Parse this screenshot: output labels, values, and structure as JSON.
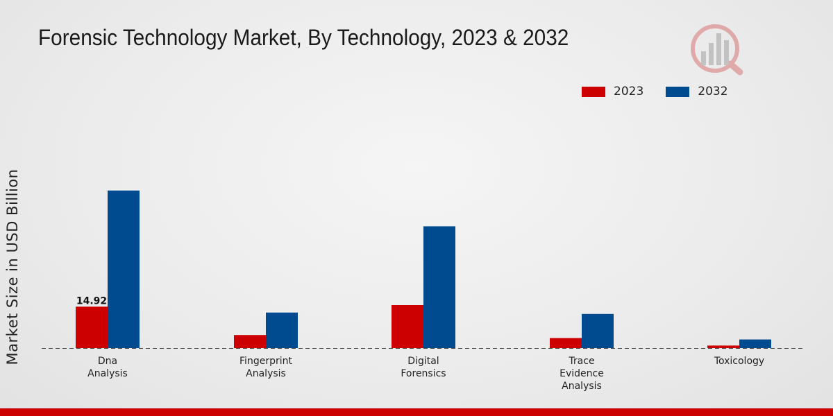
{
  "title": "Forensic Technology Market, By Technology, 2023 & 2032",
  "colors": {
    "series_2023": "#cc0000",
    "series_2032": "#004a8f",
    "footer": "#cc0000"
  },
  "legend": {
    "items": [
      {
        "label": "2023",
        "color": "#cc0000"
      },
      {
        "label": "2032",
        "color": "#004a8f"
      }
    ]
  },
  "chart_data": {
    "type": "bar",
    "title": "Forensic Technology Market, By Technology, 2023 & 2032",
    "xlabel": "",
    "ylabel": "Market Size in USD Billion",
    "categories": [
      [
        "Dna",
        "Analysis"
      ],
      [
        "Fingerprint",
        "Analysis"
      ],
      [
        "Digital",
        "Forensics"
      ],
      [
        "Trace",
        "Evidence",
        "Analysis"
      ],
      [
        "Toxicology"
      ]
    ],
    "series": [
      {
        "name": "2023",
        "color": "#cc0000",
        "values": [
          14.92,
          4.7,
          15.5,
          3.6,
          0.9
        ]
      },
      {
        "name": "2032",
        "color": "#004a8f",
        "values": [
          56.8,
          12.8,
          43.9,
          12.3,
          3.1
        ]
      }
    ],
    "data_labels": [
      {
        "series": 0,
        "index": 0,
        "text": "14.92"
      }
    ],
    "ylim": [
      0,
      70
    ],
    "grid": false,
    "legend_position": "top-right"
  }
}
